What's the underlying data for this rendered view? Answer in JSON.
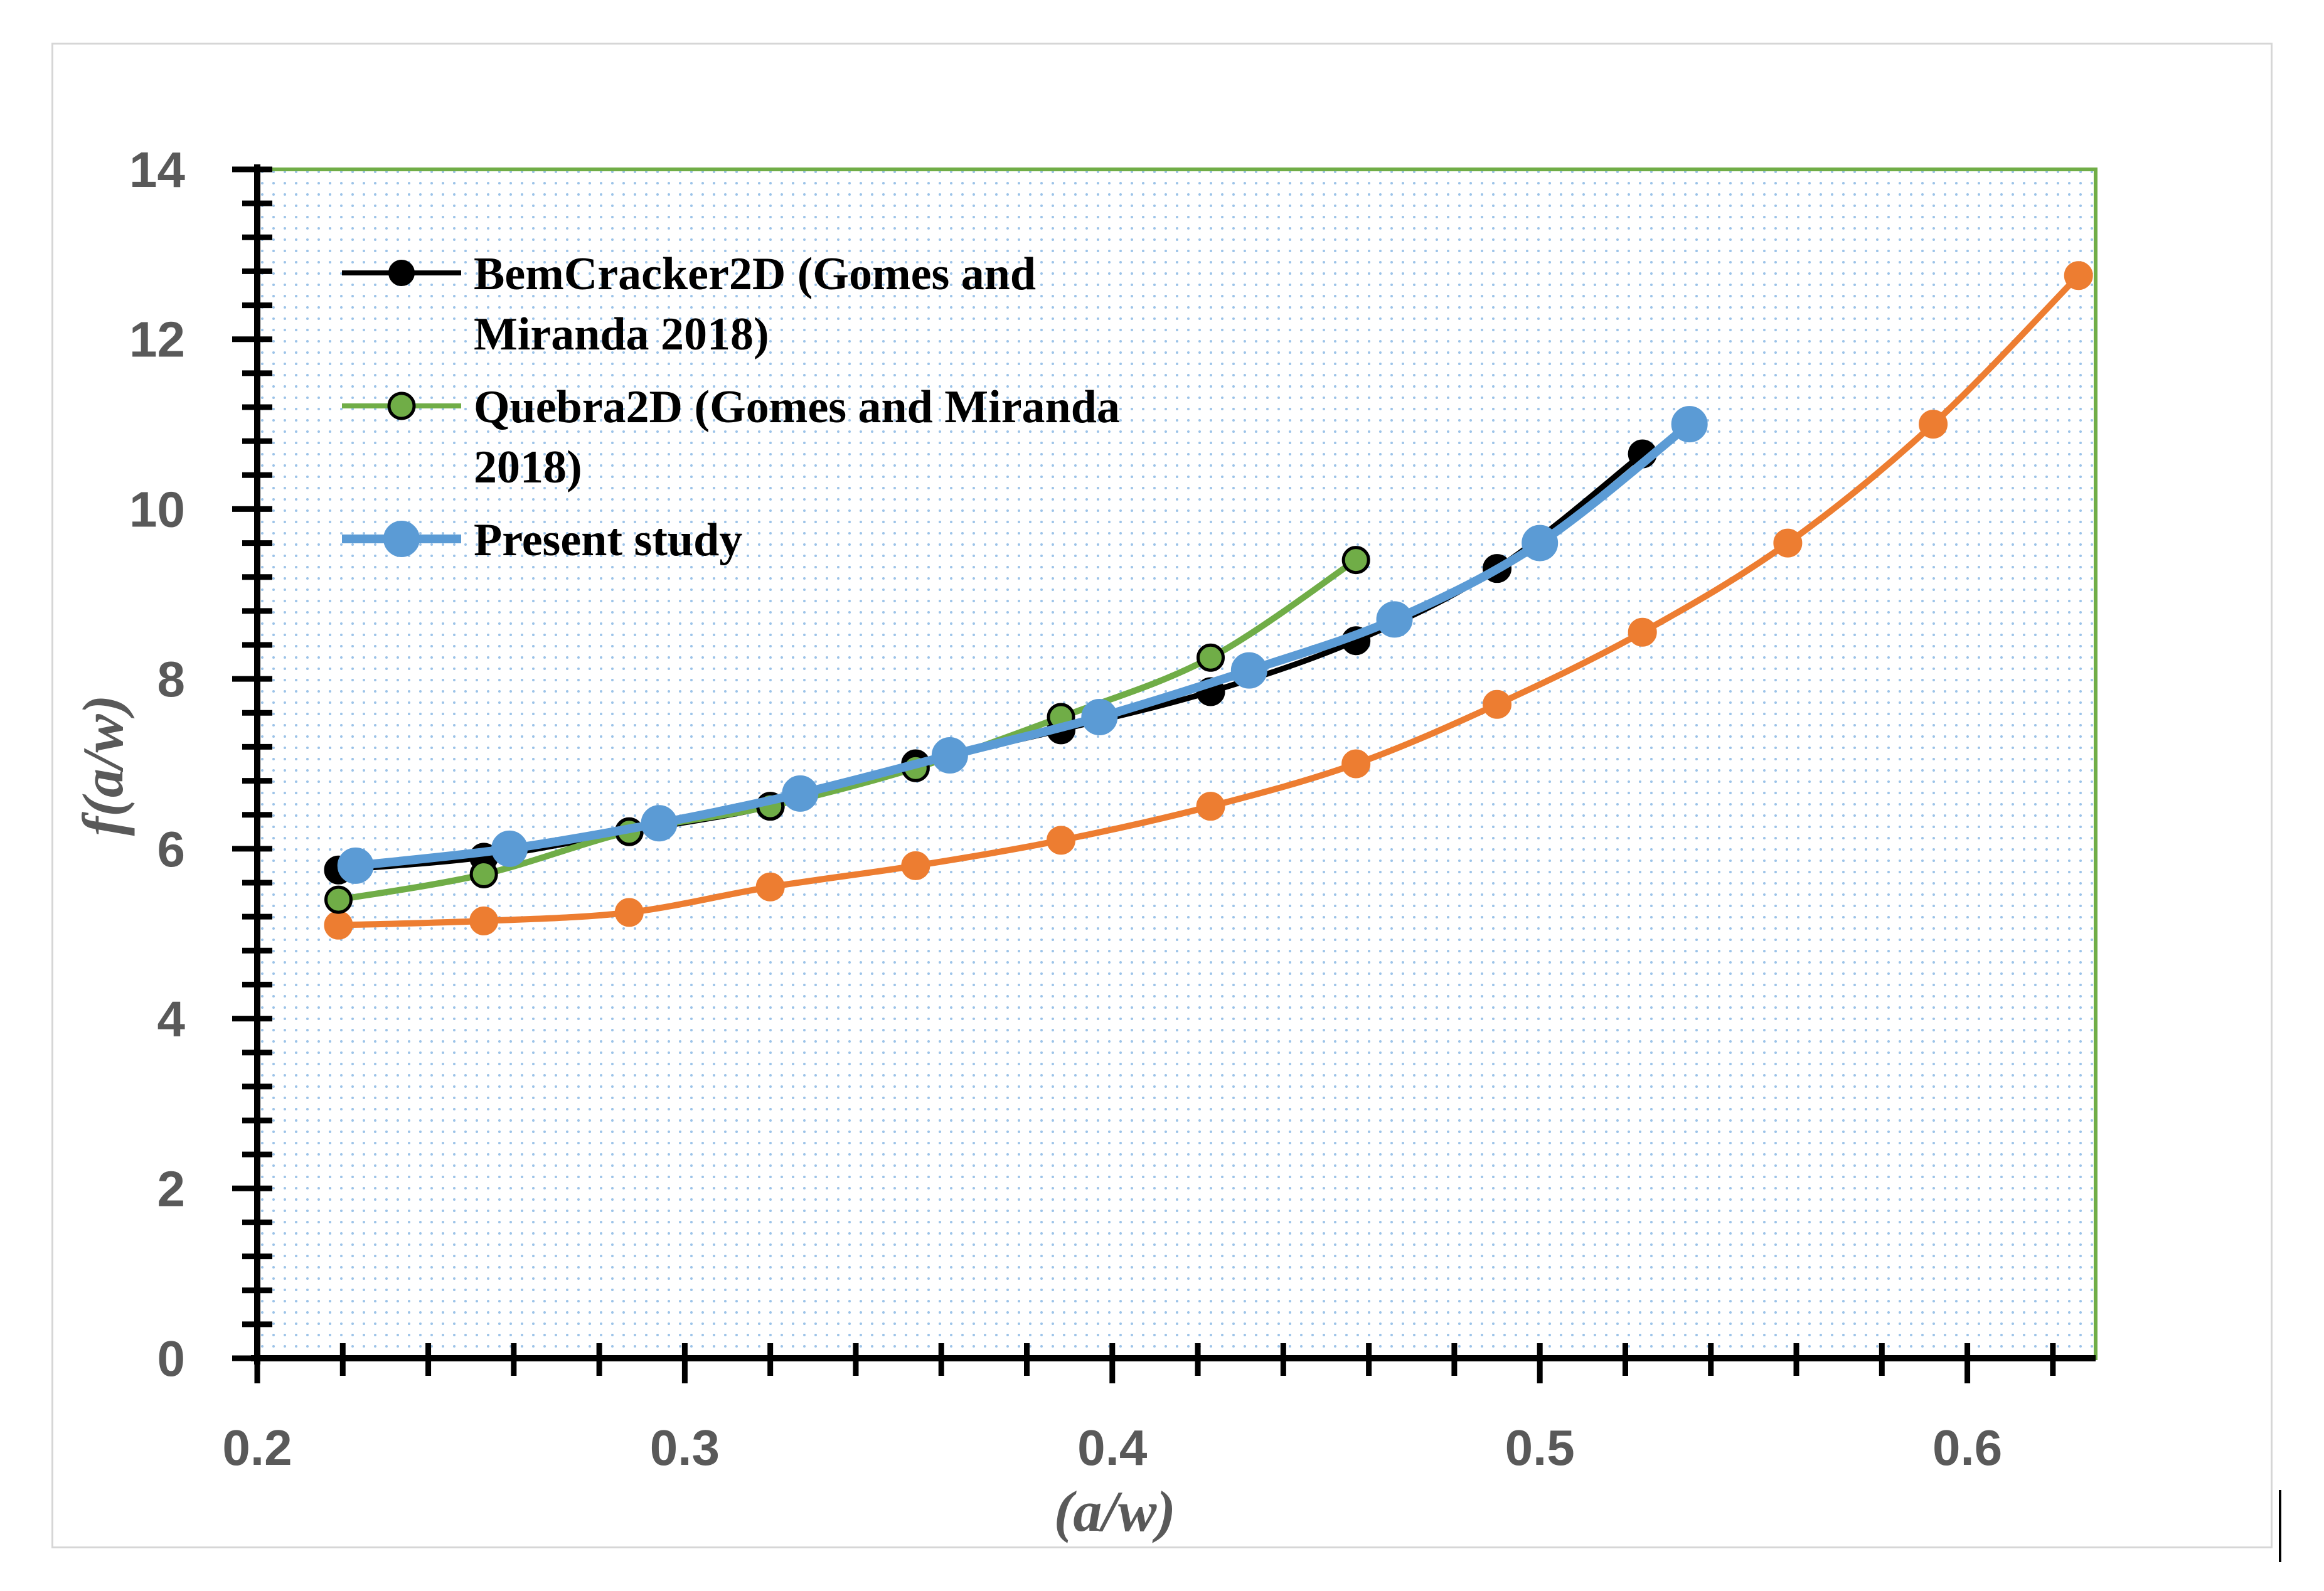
{
  "chart_data": {
    "type": "line",
    "title": "",
    "xlabel": "(a/w)",
    "ylabel": "f(a/w)",
    "xlim": [
      0.2,
      0.63
    ],
    "ylim": [
      0,
      14
    ],
    "x_ticks": [
      "0.2",
      "0.3",
      "0.4",
      "0.5",
      "0.6"
    ],
    "x_tick_values": [
      0.2,
      0.3,
      0.4,
      0.5,
      0.6
    ],
    "y_ticks": [
      "0",
      "2",
      "4",
      "6",
      "8",
      "10",
      "12",
      "14"
    ],
    "y_tick_values": [
      0,
      2,
      4,
      6,
      8,
      10,
      12,
      14
    ],
    "legend_position": "top-left",
    "series": [
      {
        "name": "Unlabeled (orange)",
        "in_legend": false,
        "color": "#ed7d31",
        "marker_fill": "#ed7d31",
        "marker_stroke": "#ed7d31",
        "x": [
          0.219,
          0.253,
          0.287,
          0.32,
          0.354,
          0.388,
          0.423,
          0.457,
          0.49,
          0.524,
          0.558,
          0.592,
          0.626
        ],
        "y": [
          5.1,
          5.15,
          5.25,
          5.55,
          5.8,
          6.1,
          6.5,
          7.0,
          7.7,
          8.55,
          9.6,
          11.0,
          12.75
        ]
      },
      {
        "name": "BemCracker2D  (Gomes and Miranda 2018)",
        "legend_lines": [
          "BemCracker2D  (Gomes and",
          "Miranda 2018)"
        ],
        "in_legend": true,
        "color": "#000000",
        "marker_fill": "#000000",
        "marker_stroke": "#000000",
        "x": [
          0.219,
          0.253,
          0.287,
          0.32,
          0.354,
          0.388,
          0.423,
          0.457,
          0.49,
          0.524
        ],
        "y": [
          5.75,
          5.9,
          6.2,
          6.5,
          7.0,
          7.4,
          7.85,
          8.45,
          9.3,
          10.65
        ]
      },
      {
        "name": "Quebra2D  (Gomes and Miranda 2018)",
        "legend_lines": [
          "Quebra2D  (Gomes and Miranda",
          "2018)"
        ],
        "in_legend": true,
        "color": "#70ad47",
        "marker_fill": "#70ad47",
        "marker_stroke": "#000000",
        "x": [
          0.219,
          0.253,
          0.287,
          0.32,
          0.354,
          0.388,
          0.423,
          0.457
        ],
        "y": [
          5.4,
          5.7,
          6.2,
          6.5,
          6.95,
          7.55,
          8.25,
          9.4
        ]
      },
      {
        "name": "Present study",
        "legend_lines": [
          "Present study"
        ],
        "in_legend": true,
        "color": "#5b9bd5",
        "marker_fill": "#5b9bd5",
        "marker_stroke": "#5b9bd5",
        "x": [
          0.223,
          0.259,
          0.294,
          0.327,
          0.362,
          0.397,
          0.432,
          0.466,
          0.5,
          0.535
        ],
        "y": [
          5.8,
          6.0,
          6.3,
          6.65,
          7.1,
          7.55,
          8.1,
          8.7,
          9.6,
          11.0
        ]
      }
    ]
  }
}
